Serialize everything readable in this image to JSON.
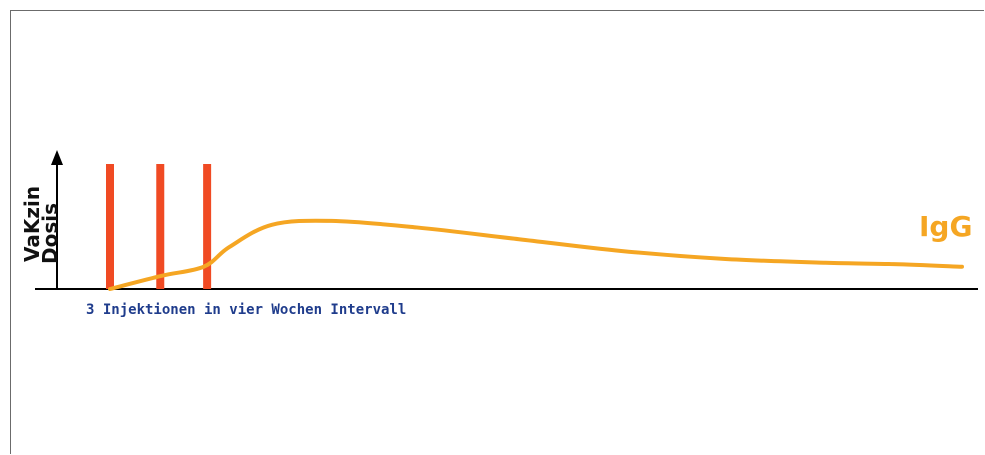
{
  "chart_data": {
    "type": "line",
    "ylabel_lines": [
      "VaKzin",
      "Dosis"
    ],
    "annotation": "3 Injektionen in vier Wochen Intervall",
    "xlim": [
      0,
      1
    ],
    "ylim": [
      0,
      1
    ],
    "injections": {
      "x": [
        0.0,
        0.059,
        0.114
      ],
      "color": "#f04a23"
    },
    "series": [
      {
        "name": "IgG",
        "color": "#f5a623",
        "x": [
          0.0,
          0.06,
          0.11,
          0.14,
          0.19,
          0.26,
          0.36,
          0.48,
          0.6,
          0.72,
          0.84,
          0.92,
          1.0
        ],
        "y": [
          0.0,
          0.1,
          0.17,
          0.32,
          0.49,
          0.52,
          0.47,
          0.38,
          0.29,
          0.23,
          0.2,
          0.19,
          0.17
        ]
      }
    ]
  }
}
